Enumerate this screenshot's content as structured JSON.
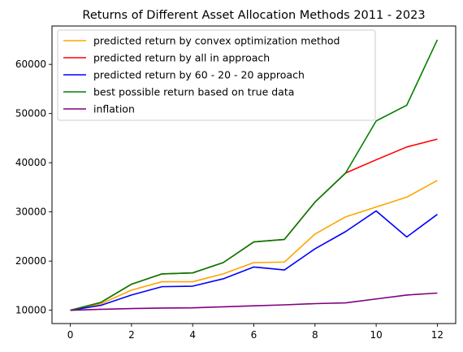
{
  "chart_data": {
    "type": "line",
    "title": "Returns of Different Asset Allocation Methods 2011 - 2023",
    "xlabel": "",
    "ylabel": "",
    "x": [
      0,
      1,
      2,
      3,
      4,
      5,
      6,
      7,
      8,
      9,
      10,
      11,
      12
    ],
    "xlim": [
      -0.6,
      12.6
    ],
    "ylim": [
      7300,
      67800
    ],
    "xticks": [
      0,
      2,
      4,
      6,
      8,
      10,
      12
    ],
    "yticks": [
      10000,
      20000,
      30000,
      40000,
      50000,
      60000
    ],
    "grid": false,
    "legend_position": "top-left",
    "series": [
      {
        "name": "predicted return by convex optimization method",
        "color": "#ffa500",
        "values": [
          10000,
          11300,
          14100,
          15800,
          15800,
          17400,
          19700,
          19800,
          25500,
          29000,
          31000,
          33000,
          36400
        ]
      },
      {
        "name": "predicted return by all in approach",
        "color": "#ff0000",
        "values": [
          10000,
          11600,
          15300,
          17400,
          17600,
          19700,
          23900,
          24400,
          32000,
          37900,
          40600,
          43200,
          44800
        ]
      },
      {
        "name": "predicted return by 60 - 20 - 20 approach",
        "color": "#0000ff",
        "values": [
          10000,
          11000,
          13100,
          14800,
          14900,
          16400,
          18800,
          18200,
          22500,
          26000,
          30200,
          24900,
          29500
        ]
      },
      {
        "name": "best possible return based on true data",
        "color": "#008000",
        "values": [
          10000,
          11600,
          15300,
          17400,
          17600,
          19700,
          23900,
          24400,
          32000,
          37900,
          48500,
          51700,
          65000
        ]
      },
      {
        "name": "inflation",
        "color": "#800080",
        "values": [
          10000,
          10200,
          10350,
          10450,
          10500,
          10700,
          10900,
          11100,
          11350,
          11500,
          12300,
          13100,
          13500
        ]
      }
    ]
  }
}
